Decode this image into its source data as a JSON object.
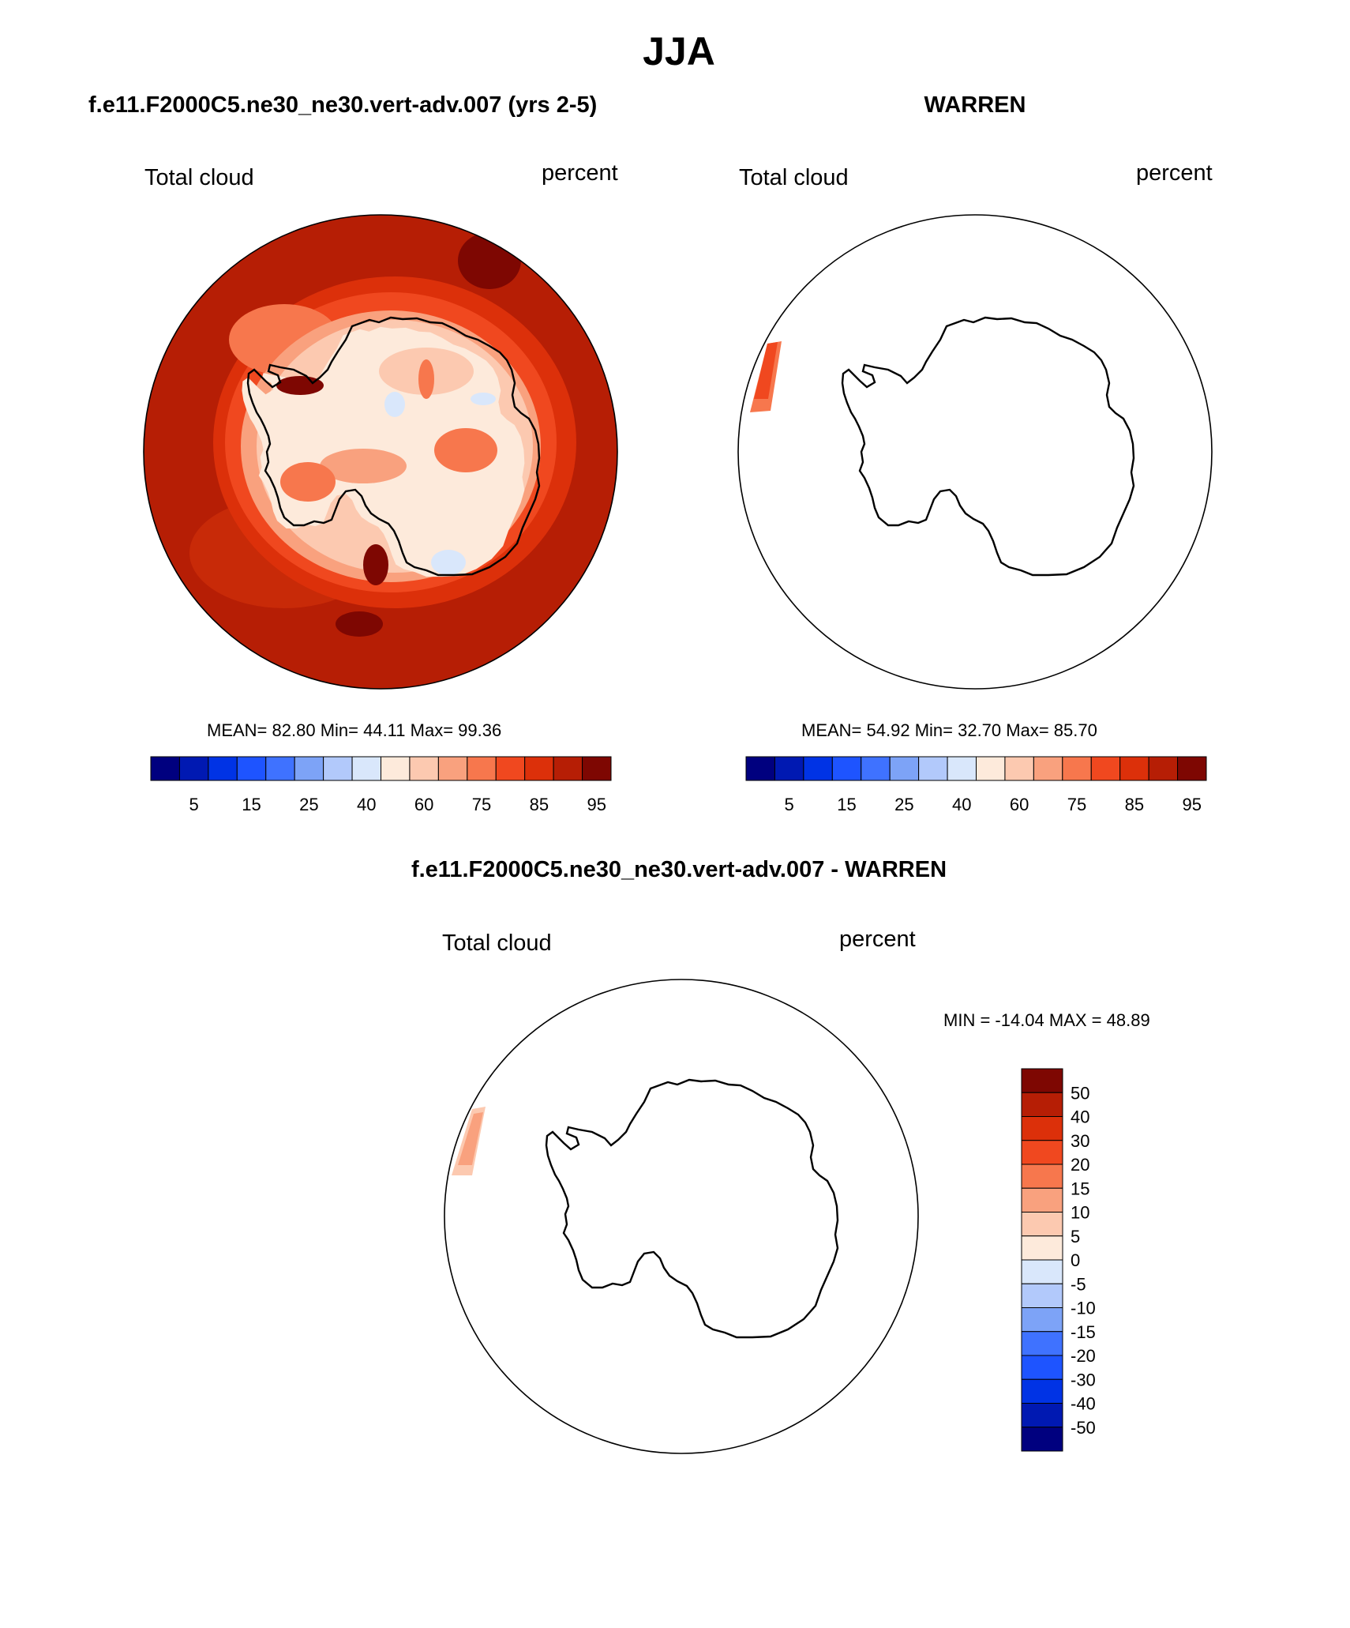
{
  "page_title": "JJA",
  "panels": [
    {
      "title": "f.e11.F2000C5.ne30_ne30.vert-adv.007 (yrs 2-5)",
      "variable": "Total cloud",
      "units": "percent",
      "stats": "MEAN=  82.80  Min=  44.11  Max=  99.36"
    },
    {
      "title": "WARREN",
      "variable": "Total cloud",
      "units": "percent",
      "stats": "MEAN=  54.92  Min=  32.70  Max=  85.70"
    },
    {
      "title": "f.e11.F2000C5.ne30_ne30.vert-adv.007 - WARREN",
      "variable": "Total cloud",
      "units": "percent",
      "stats": "MIN = -14.04 MAX =  48.89"
    }
  ],
  "colorbar_abs": {
    "colors": [
      "#00007f",
      "#0019b2",
      "#0033e5",
      "#1e54ff",
      "#3f72ff",
      "#7da3f7",
      "#b2c9fb",
      "#d9e7fb",
      "#fdeadb",
      "#fcc9b0",
      "#f9a17e",
      "#f7774d",
      "#f0481f",
      "#dc300a",
      "#b61e05",
      "#7e0702"
    ],
    "labels": [
      "5",
      "15",
      "25",
      "40",
      "60",
      "75",
      "85",
      "95"
    ]
  },
  "colorbar_diff": {
    "colors": [
      "#7e0702",
      "#b61e05",
      "#dc300a",
      "#f0481f",
      "#f7774d",
      "#f9a17e",
      "#fcc9b0",
      "#fdeadb",
      "#d9e7fb",
      "#b2c9fb",
      "#7da3f7",
      "#3f72ff",
      "#1e54ff",
      "#0033e5",
      "#0019b2",
      "#00007f"
    ],
    "labels": [
      "50",
      "40",
      "30",
      "20",
      "15",
      "10",
      "5",
      "0",
      "-5",
      "-10",
      "-15",
      "-20",
      "-30",
      "-40",
      "-50"
    ]
  }
}
